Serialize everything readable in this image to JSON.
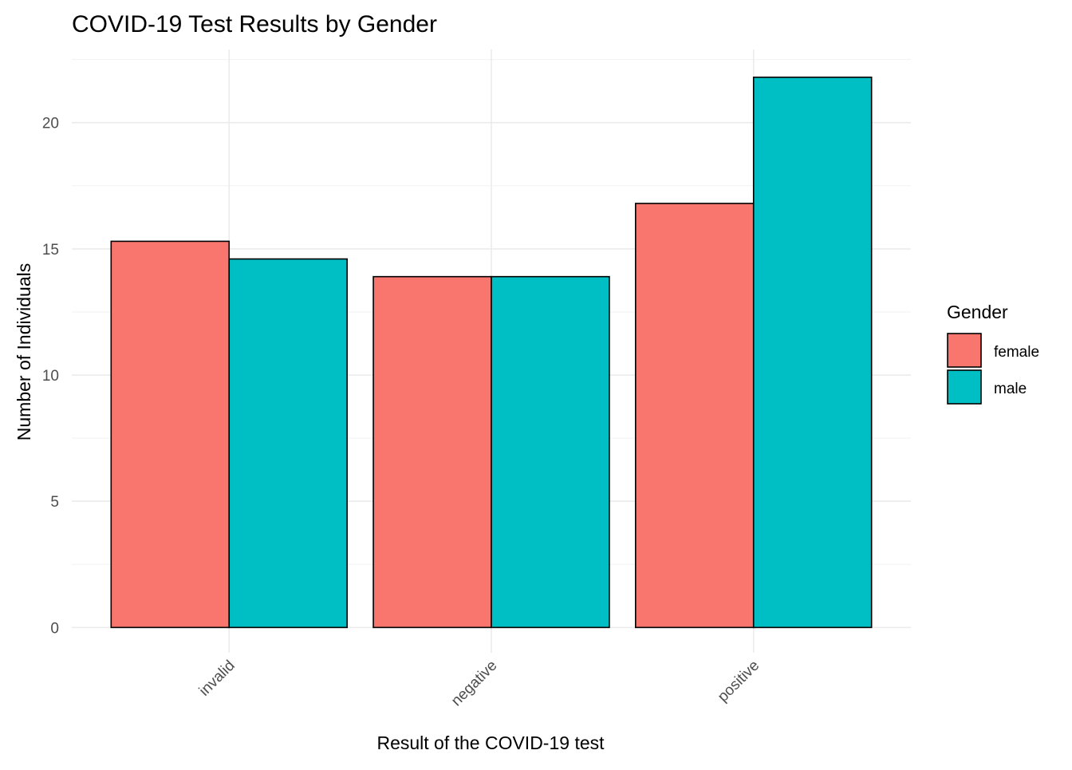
{
  "chart_data": {
    "type": "bar",
    "title": "COVID-19 Test Results by Gender",
    "xlabel": "Result of the COVID-19 test",
    "ylabel": "Number of Individuals",
    "categories": [
      "invalid",
      "negative",
      "positive"
    ],
    "series": [
      {
        "name": "female",
        "values": [
          15.3,
          13.9,
          16.8
        ],
        "color": "#F8766D"
      },
      {
        "name": "male",
        "values": [
          14.6,
          13.9,
          21.8
        ],
        "color": "#00BFC4"
      }
    ],
    "ylim": [
      -1.0,
      22.9
    ],
    "yticks": [
      0,
      5,
      10,
      15,
      20
    ],
    "grid": true,
    "legend": {
      "title": "Gender",
      "position": "right"
    }
  }
}
